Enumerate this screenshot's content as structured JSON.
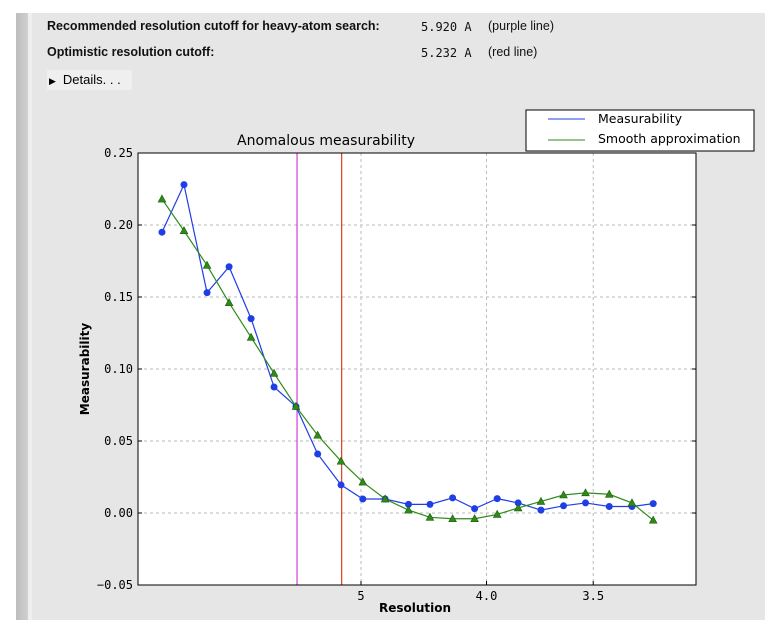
{
  "summary": {
    "recommended_label": "Recommended resolution cutoff for heavy-atom search:",
    "recommended_value": "5.920 A",
    "recommended_note": "(purple line)",
    "optimistic_label": "Optimistic resolution cutoff:",
    "optimistic_value": "5.232 A",
    "optimistic_note": "(red line)",
    "details_label": "Details. . ."
  },
  "chart_data": {
    "type": "line",
    "title": "Anomalous measurability",
    "xlabel": "Resolution",
    "ylabel": "Measurability",
    "x_scale": "1/d^2 (reciprocal squared resolution)",
    "ylim": [
      -0.05,
      0.25
    ],
    "yticks": [
      "0.25",
      "0.20",
      "0.15",
      "0.10",
      "0.05",
      "0.00",
      "−0.05"
    ],
    "xticks": [
      "5",
      "4.0",
      "3.5"
    ],
    "grid": true,
    "legend_placement": "top-right, outside plot",
    "x": [
      15.21,
      11.0,
      8.98,
      7.82,
      7.02,
      6.4,
      5.94,
      5.57,
      5.24,
      4.98,
      4.75,
      4.54,
      4.37,
      4.21,
      4.07,
      3.94,
      3.83,
      3.72,
      3.62,
      3.53,
      3.44,
      3.36,
      3.29
    ],
    "series": [
      {
        "name": "Measurability",
        "color": "#1f3fe6",
        "marker": "circle",
        "values": [
          0.195,
          0.228,
          0.153,
          0.171,
          0.135,
          0.0875,
          0.074,
          0.041,
          0.0195,
          0.0097,
          0.0097,
          0.006,
          0.006,
          0.0105,
          0.003,
          0.01,
          0.007,
          0.002,
          0.005,
          0.007,
          0.0045,
          0.0045,
          0.0065
        ]
      },
      {
        "name": "Smooth approximation",
        "color": "#2e8b17",
        "marker": "triangle",
        "values": [
          0.218,
          0.196,
          0.172,
          0.146,
          0.122,
          0.097,
          0.074,
          0.054,
          0.036,
          0.0215,
          0.0097,
          0.002,
          -0.003,
          -0.004,
          -0.004,
          -0.001,
          0.0035,
          0.008,
          0.0125,
          0.014,
          0.013,
          0.007,
          -0.005
        ]
      }
    ],
    "vlines": [
      {
        "value": 5.92,
        "color": "#d63bd6"
      },
      {
        "value": 5.232,
        "color": "#d9401a"
      }
    ]
  }
}
